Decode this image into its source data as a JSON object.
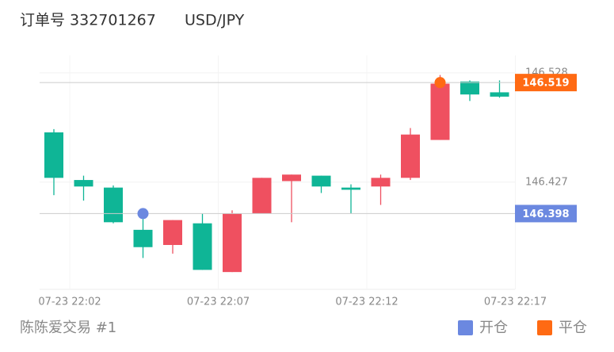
{
  "chart_data": {
    "type": "candlestick",
    "title": "订单号 332701267",
    "symbol": "USD/JPY",
    "footer": "陈陈爱交易 #1",
    "categories": [
      "07-23 22:02",
      null,
      null,
      null,
      null,
      "07-23 22:07",
      null,
      null,
      null,
      null,
      "07-23 22:12",
      null,
      null,
      null,
      null,
      "07-23 22:17"
    ],
    "open": [
      146.473,
      146.429,
      146.422,
      146.383,
      146.369,
      146.389,
      146.344,
      146.398,
      146.428,
      146.433,
      146.422,
      146.423,
      146.431,
      146.466,
      146.52,
      146.51
    ],
    "high": [
      146.476,
      146.433,
      146.424,
      146.393,
      146.392,
      146.398,
      146.401,
      146.431,
      146.434,
      146.433,
      146.425,
      146.434,
      146.477,
      146.526,
      146.521,
      146.521
    ],
    "low": [
      146.415,
      146.41,
      146.389,
      146.357,
      146.361,
      146.346,
      146.344,
      146.398,
      146.39,
      146.417,
      146.398,
      146.406,
      146.429,
      146.466,
      146.502,
      146.505
    ],
    "close": [
      146.431,
      146.423,
      146.39,
      146.367,
      146.392,
      146.346,
      146.398,
      146.431,
      146.434,
      146.423,
      146.42,
      146.431,
      146.471,
      146.518,
      146.508,
      146.506
    ],
    "up_color": "#ef5060",
    "down_color": "#0fb596",
    "ylim": [
      146.328,
      146.544
    ],
    "yticks": [
      146.427,
      146.528
    ],
    "markers": [
      {
        "name": "开仓",
        "color": "#6b88e0",
        "index": 3,
        "value": 146.398
      },
      {
        "name": "平仓",
        "color": "#ff6a13",
        "index": 13,
        "value": 146.519
      }
    ]
  }
}
